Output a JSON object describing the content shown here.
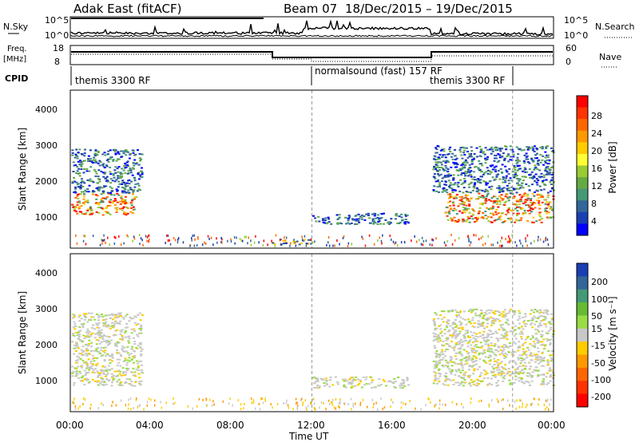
{
  "header": {
    "station": "Adak East (fitACF)",
    "beam": "Beam 07",
    "date_range": "18/Dec/2015 – 19/Dec/2015"
  },
  "noise_panel": {
    "left_label": "N.Sky",
    "right_label": "N.Search",
    "left_ticks": [
      "10^5",
      "10^0"
    ],
    "right_ticks": [
      "10^5",
      "10^0"
    ]
  },
  "freq_panel": {
    "left_label_top": "Freq.",
    "left_label_unit": "[MHz]",
    "right_label": "Nave",
    "left_ticks": [
      "18",
      "8"
    ],
    "right_ticks": [
      "60",
      "0"
    ]
  },
  "cpid_panel": {
    "label": "CPID",
    "modes": [
      {
        "text": "themis 3300 RF"
      },
      {
        "text": "normalsound (fast) 157 RF"
      },
      {
        "text": "themis 3300 RF"
      }
    ]
  },
  "x_axis": {
    "label": "Time UT",
    "ticks": [
      "00:00",
      "04:00",
      "08:00",
      "12:00",
      "16:00",
      "20:00",
      "00:00"
    ]
  },
  "power_panel": {
    "ylabel": "Slant Range [km]",
    "yticks": [
      "4000",
      "3000",
      "2000",
      "1000"
    ],
    "colorbar_label": "Power [dB]",
    "colorbar_ticks": [
      "28",
      "24",
      "20",
      "16",
      "12",
      "8",
      "4"
    ],
    "colorbar_colors": [
      "#ff0000",
      "#ff3300",
      "#ff6600",
      "#ff9900",
      "#ffcc00",
      "#ffff33",
      "#99cc33",
      "#66aa44",
      "#449977",
      "#336699",
      "#1a3fb3",
      "#0000ff"
    ]
  },
  "velocity_panel": {
    "ylabel": "Slant Range [km]",
    "yticks": [
      "4000",
      "3000",
      "2000",
      "1000"
    ],
    "colorbar_label": "Velocity [m s⁻¹]",
    "colorbar_ticks": [
      "200",
      "100",
      "50",
      "15",
      "-15",
      "-50",
      "-100",
      "-200"
    ],
    "colorbar_colors": [
      "#1a3fb3",
      "#336699",
      "#449977",
      "#66bb33",
      "#99dd44",
      "#c8c8c8",
      "#ffcc00",
      "#ff9900",
      "#ff6600",
      "#ff3300",
      "#ff0000"
    ]
  },
  "chart_data": {
    "type": "heatmap",
    "x_range_hours": [
      0,
      24
    ],
    "y_range_km": [
      180,
      4500
    ],
    "grid": false,
    "mode_boundaries_hours": [
      12,
      22
    ],
    "power_regions": [
      {
        "t0": 0.0,
        "t1": 3.2,
        "r0": 1100,
        "r1": 1700,
        "level": "high"
      },
      {
        "t0": 0.0,
        "t1": 3.5,
        "r0": 1700,
        "r1": 2900,
        "level": "low"
      },
      {
        "t0": 9.8,
        "t1": 12.0,
        "r0": 300,
        "r1": 450,
        "level": "medium"
      },
      {
        "t0": 12.0,
        "t1": 16.8,
        "r0": 850,
        "r1": 1150,
        "level": "low"
      },
      {
        "t0": 18.6,
        "t1": 24.0,
        "r0": 900,
        "r1": 1700,
        "level": "high"
      },
      {
        "t0": 18.0,
        "t1": 24.0,
        "r0": 1700,
        "r1": 3000,
        "level": "low"
      }
    ],
    "velocity_regions": [
      {
        "t0": 0.0,
        "t1": 3.5,
        "r0": 900,
        "r1": 2900,
        "class": "ground scatter"
      },
      {
        "t0": 12.0,
        "t1": 16.8,
        "r0": 850,
        "r1": 1150,
        "class": "ground scatter"
      },
      {
        "t0": 18.0,
        "t1": 24.0,
        "r0": 900,
        "r1": 3000,
        "class": "ground scatter"
      }
    ]
  }
}
